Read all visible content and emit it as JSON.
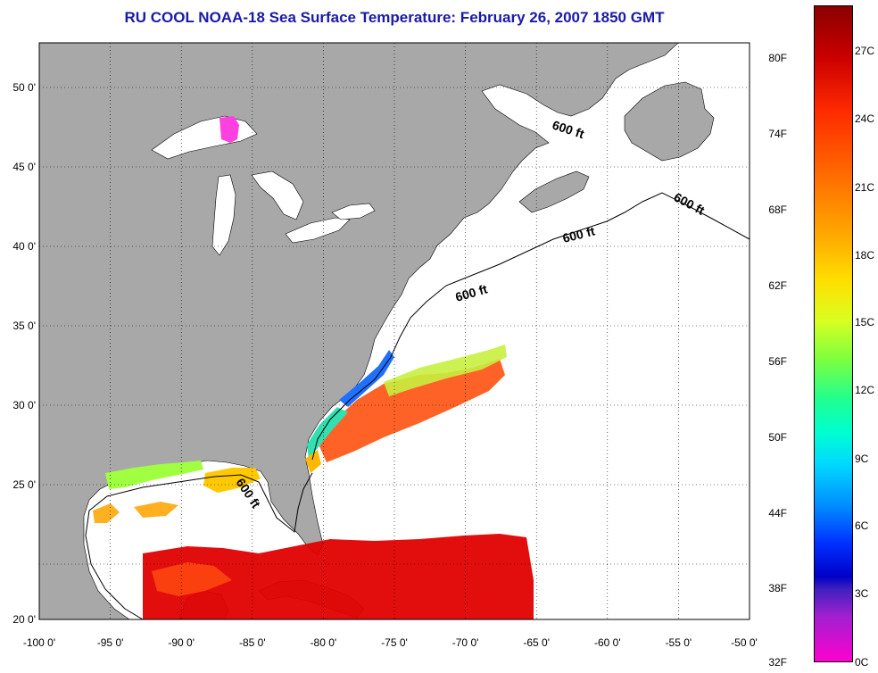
{
  "title": "RU COOL  NOAA-18  Sea Surface Temperature:  February 26, 2007 1850 GMT",
  "map": {
    "lon_range": [
      -100,
      -50
    ],
    "lat_range": [
      20,
      52.5
    ],
    "x_ticks": [
      "-100 0'",
      "-95 0'",
      "-90 0'",
      "-85 0'",
      "-80 0'",
      "-75 0'",
      "-70 0'",
      "-65 0'",
      "-60 0'",
      "-55 0'",
      "-50 0'"
    ],
    "y_ticks": [
      "50 0'",
      "45 0'",
      "40 0'",
      "35 0'",
      "30 0'",
      "25 0'",
      "20 0'"
    ],
    "contour_label": "600 ft",
    "colors": {
      "land": "#a8a8a8",
      "water": "#ffffff",
      "lake_ice": "#ff40e0"
    }
  },
  "colorbar": {
    "fahrenheit_labels": [
      "80F",
      "74F",
      "68F",
      "62F",
      "56F",
      "50F",
      "44F",
      "38F",
      "32F"
    ],
    "celsius_labels": [
      "27C",
      "24C",
      "21C",
      "18C",
      "15C",
      "12C",
      "9C",
      "6C",
      "3C",
      "0C"
    ]
  }
}
